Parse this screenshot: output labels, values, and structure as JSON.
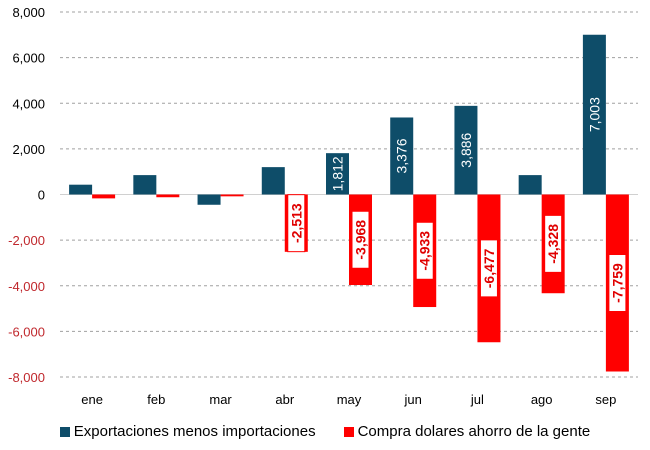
{
  "chart_data": {
    "type": "bar",
    "title": "",
    "xlabel": "",
    "ylabel": "",
    "ylim": [
      -8000,
      8000
    ],
    "yticks": [
      8000,
      6000,
      4000,
      2000,
      0,
      -2000,
      -4000,
      -6000,
      -8000
    ],
    "ytick_labels": [
      "8,000",
      "6,000",
      "4,000",
      "2,000",
      "0",
      "-2,000",
      "-4,000",
      "-6,000",
      "-8,000"
    ],
    "grid": true,
    "legend_position": "bottom",
    "categories": [
      "ene",
      "feb",
      "mar",
      "abr",
      "may",
      "jun",
      "jul",
      "ago",
      "sep"
    ],
    "series": [
      {
        "name": "Exportaciones menos importaciones",
        "color": "#0e4d69",
        "values": [
          430,
          850,
          -450,
          1200,
          1812,
          3376,
          3886,
          850,
          7003
        ],
        "labels": [
          null,
          null,
          null,
          null,
          "1,812",
          "3,376",
          "3,886",
          null,
          "7,003"
        ]
      },
      {
        "name": "Compra dolares ahorro de la gente",
        "color": "#ff0000",
        "values": [
          -170,
          -120,
          -80,
          -2513,
          -3968,
          -4933,
          -6477,
          -4328,
          -7759
        ],
        "labels": [
          null,
          null,
          null,
          "-2,513",
          "-3,968",
          "-4,933",
          "-6,477",
          "-4,328",
          "-7,759"
        ]
      }
    ],
    "negative_tick_color": "#c0282d"
  }
}
